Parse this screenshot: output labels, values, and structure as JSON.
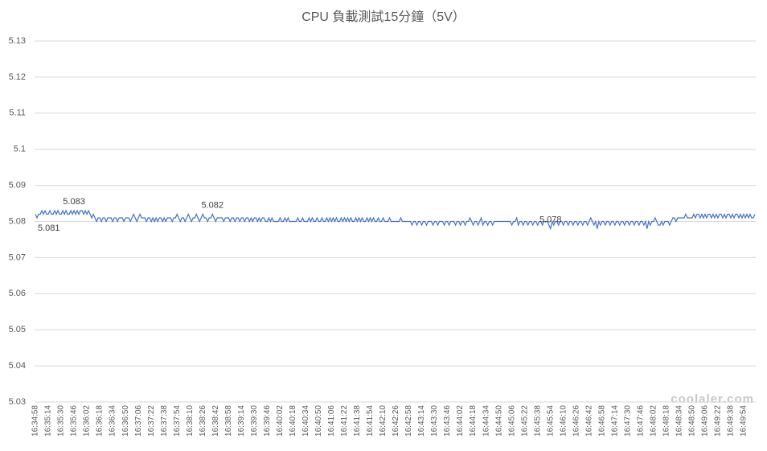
{
  "chart_data": {
    "type": "line",
    "title": "CPU 負載測試15分鐘（5V）",
    "watermark": "coolaler.com",
    "ylim": [
      5.03,
      5.13
    ],
    "yticks": [
      5.03,
      5.04,
      5.05,
      5.06,
      5.07,
      5.08,
      5.09,
      5.1,
      5.11,
      5.12,
      5.13
    ],
    "grid": true,
    "categories": [
      "16:34:58",
      null,
      null,
      null,
      null,
      null,
      null,
      null,
      "16:35:14",
      null,
      null,
      null,
      null,
      null,
      null,
      null,
      "16:35:30",
      null,
      null,
      null,
      null,
      null,
      null,
      null,
      "16:35:46",
      null,
      null,
      null,
      null,
      null,
      null,
      null,
      "16:36:02",
      null,
      null,
      null,
      null,
      null,
      null,
      null,
      "16:36:18",
      null,
      null,
      null,
      null,
      null,
      null,
      null,
      "16:36:34",
      null,
      null,
      null,
      null,
      null,
      null,
      null,
      "16:36:50",
      null,
      null,
      null,
      null,
      null,
      null,
      null,
      "16:37:06",
      null,
      null,
      null,
      null,
      null,
      null,
      null,
      "16:37:22",
      null,
      null,
      null,
      null,
      null,
      null,
      null,
      "16:37:38",
      null,
      null,
      null,
      null,
      null,
      null,
      null,
      "16:37:54",
      null,
      null,
      null,
      null,
      null,
      null,
      null,
      "16:38:10",
      null,
      null,
      null,
      null,
      null,
      null,
      null,
      "16:38:26",
      null,
      null,
      null,
      null,
      null,
      null,
      null,
      "16:38:42",
      null,
      null,
      null,
      null,
      null,
      null,
      null,
      "16:38:58",
      null,
      null,
      null,
      null,
      null,
      null,
      null,
      "16:39:14",
      null,
      null,
      null,
      null,
      null,
      null,
      null,
      "16:39:30",
      null,
      null,
      null,
      null,
      null,
      null,
      null,
      "16:39:46",
      null,
      null,
      null,
      null,
      null,
      null,
      null,
      "16:40:02",
      null,
      null,
      null,
      null,
      null,
      null,
      null,
      "16:40:18",
      null,
      null,
      null,
      null,
      null,
      null,
      null,
      "16:40:34",
      null,
      null,
      null,
      null,
      null,
      null,
      null,
      "16:40:50",
      null,
      null,
      null,
      null,
      null,
      null,
      null,
      "16:41:06",
      null,
      null,
      null,
      null,
      null,
      null,
      null,
      "16:41:22",
      null,
      null,
      null,
      null,
      null,
      null,
      null,
      "16:41:38",
      null,
      null,
      null,
      null,
      null,
      null,
      null,
      "16:41:54",
      null,
      null,
      null,
      null,
      null,
      null,
      null,
      "16:42:10",
      null,
      null,
      null,
      null,
      null,
      null,
      null,
      "16:42:26",
      null,
      null,
      null,
      null,
      null,
      null,
      null,
      "16:42:58",
      null,
      null,
      null,
      null,
      null,
      null,
      null,
      "16:43:14",
      null,
      null,
      null,
      null,
      null,
      null,
      null,
      "16:43:30",
      null,
      null,
      null,
      null,
      null,
      null,
      null,
      "16:43:46",
      null,
      null,
      null,
      null,
      null,
      null,
      null,
      "16:44:02",
      null,
      null,
      null,
      null,
      null,
      null,
      null,
      "16:44:18",
      null,
      null,
      null,
      null,
      null,
      null,
      null,
      "16:44:34",
      null,
      null,
      null,
      null,
      null,
      null,
      null,
      "16:44:50",
      null,
      null,
      null,
      null,
      null,
      null,
      null,
      "16:45:06",
      null,
      null,
      null,
      null,
      null,
      null,
      null,
      "16:45:22",
      null,
      null,
      null,
      null,
      null,
      null,
      null,
      "16:45:38",
      null,
      null,
      null,
      null,
      null,
      null,
      null,
      "16:45:54",
      null,
      null,
      null,
      null,
      null,
      null,
      null,
      "16:46:10",
      null,
      null,
      null,
      null,
      null,
      null,
      null,
      "16:46:26",
      null,
      null,
      null,
      null,
      null,
      null,
      null,
      "16:46:42",
      null,
      null,
      null,
      null,
      null,
      null,
      null,
      "16:46:58",
      null,
      null,
      null,
      null,
      null,
      null,
      null,
      "16:47:14",
      null,
      null,
      null,
      null,
      null,
      null,
      null,
      "16:47:30",
      null,
      null,
      null,
      null,
      null,
      null,
      null,
      "16:47:46",
      null,
      null,
      null,
      null,
      null,
      null,
      null,
      "16:48:02",
      null,
      null,
      null,
      null,
      null,
      null,
      null,
      "16:48:18",
      null,
      null,
      null,
      null,
      null,
      null,
      null,
      "16:48:34",
      null,
      null,
      null,
      null,
      null,
      null,
      null,
      "16:48:50",
      null,
      null,
      null,
      null,
      null,
      null,
      null,
      "16:49:06",
      null,
      null,
      null,
      null,
      null,
      null,
      null,
      "16:49:22",
      null,
      null,
      null,
      null,
      null,
      null,
      null,
      "16:49:38",
      null,
      null,
      null,
      null,
      null,
      null,
      null,
      "16:49:54",
      null,
      null,
      null,
      null,
      null,
      null,
      null
    ],
    "color": "#4472c4",
    "values": [
      5.082,
      5.081,
      5.082,
      5.082,
      5.083,
      5.082,
      5.083,
      5.082,
      5.082,
      5.083,
      5.082,
      5.082,
      5.083,
      5.082,
      5.083,
      5.082,
      5.082,
      5.083,
      5.082,
      5.083,
      5.082,
      5.082,
      5.083,
      5.082,
      5.083,
      5.082,
      5.083,
      5.082,
      5.083,
      5.083,
      5.082,
      5.083,
      5.082,
      5.083,
      5.082,
      5.081,
      5.082,
      5.081,
      5.08,
      5.081,
      5.081,
      5.08,
      5.081,
      5.081,
      5.08,
      5.081,
      5.081,
      5.081,
      5.08,
      5.081,
      5.081,
      5.08,
      5.081,
      5.081,
      5.081,
      5.08,
      5.081,
      5.081,
      5.081,
      5.08,
      5.081,
      5.082,
      5.081,
      5.08,
      5.081,
      5.082,
      5.081,
      5.081,
      5.081,
      5.08,
      5.081,
      5.081,
      5.08,
      5.081,
      5.08,
      5.081,
      5.08,
      5.081,
      5.081,
      5.08,
      5.081,
      5.08,
      5.081,
      5.081,
      5.081,
      5.08,
      5.081,
      5.081,
      5.082,
      5.081,
      5.08,
      5.081,
      5.081,
      5.08,
      5.081,
      5.082,
      5.081,
      5.08,
      5.081,
      5.081,
      5.082,
      5.081,
      5.08,
      5.081,
      5.082,
      5.081,
      5.081,
      5.08,
      5.081,
      5.081,
      5.082,
      5.081,
      5.08,
      5.081,
      5.081,
      5.081,
      5.081,
      5.08,
      5.081,
      5.081,
      5.081,
      5.08,
      5.081,
      5.081,
      5.08,
      5.081,
      5.081,
      5.08,
      5.081,
      5.081,
      5.08,
      5.081,
      5.081,
      5.08,
      5.081,
      5.08,
      5.081,
      5.081,
      5.08,
      5.081,
      5.08,
      5.081,
      5.081,
      5.08,
      5.08,
      5.081,
      5.08,
      5.081,
      5.08,
      5.08,
      5.08,
      5.08,
      5.081,
      5.08,
      5.08,
      5.081,
      5.08,
      5.081,
      5.08,
      5.08,
      5.08,
      5.08,
      5.08,
      5.081,
      5.08,
      5.08,
      5.081,
      5.08,
      5.08,
      5.08,
      5.081,
      5.08,
      5.081,
      5.08,
      5.08,
      5.081,
      5.08,
      5.08,
      5.081,
      5.08,
      5.08,
      5.081,
      5.08,
      5.081,
      5.08,
      5.081,
      5.08,
      5.081,
      5.08,
      5.08,
      5.081,
      5.08,
      5.081,
      5.08,
      5.081,
      5.08,
      5.081,
      5.08,
      5.08,
      5.081,
      5.08,
      5.081,
      5.08,
      5.081,
      5.08,
      5.08,
      5.081,
      5.08,
      5.081,
      5.08,
      5.081,
      5.08,
      5.08,
      5.081,
      5.08,
      5.08,
      5.081,
      5.08,
      5.08,
      5.08,
      5.081,
      5.08,
      5.08,
      5.08,
      5.08,
      5.08,
      5.08,
      5.081,
      5.08,
      5.08,
      5.08,
      5.08,
      5.08,
      5.08,
      5.079,
      5.08,
      5.08,
      5.079,
      5.08,
      5.08,
      5.079,
      5.08,
      5.08,
      5.079,
      5.08,
      5.08,
      5.08,
      5.079,
      5.08,
      5.08,
      5.079,
      5.08,
      5.08,
      5.08,
      5.079,
      5.08,
      5.08,
      5.079,
      5.08,
      5.08,
      5.08,
      5.079,
      5.08,
      5.08,
      5.079,
      5.08,
      5.08,
      5.079,
      5.08,
      5.08,
      5.081,
      5.08,
      5.079,
      5.08,
      5.08,
      5.079,
      5.08,
      5.081,
      5.079,
      5.08,
      5.08,
      5.079,
      5.08,
      5.08,
      5.079,
      5.08,
      5.08,
      5.08,
      5.08,
      5.08,
      5.08,
      5.08,
      5.08,
      5.08,
      5.08,
      5.08,
      5.079,
      5.08,
      5.08,
      5.081,
      5.079,
      5.08,
      5.08,
      5.079,
      5.08,
      5.08,
      5.079,
      5.08,
      5.08,
      5.079,
      5.08,
      5.08,
      5.079,
      5.08,
      5.08,
      5.079,
      5.08,
      5.08,
      5.08,
      5.079,
      5.078,
      5.08,
      5.079,
      5.08,
      5.08,
      5.079,
      5.08,
      5.08,
      5.079,
      5.08,
      5.08,
      5.079,
      5.08,
      5.08,
      5.079,
      5.08,
      5.08,
      5.079,
      5.08,
      5.08,
      5.079,
      5.08,
      5.08,
      5.079,
      5.08,
      5.081,
      5.08,
      5.079,
      5.08,
      5.078,
      5.08,
      5.079,
      5.08,
      5.08,
      5.079,
      5.08,
      5.08,
      5.079,
      5.08,
      5.08,
      5.079,
      5.08,
      5.08,
      5.079,
      5.08,
      5.08,
      5.079,
      5.08,
      5.08,
      5.079,
      5.08,
      5.08,
      5.079,
      5.08,
      5.08,
      5.079,
      5.08,
      5.08,
      5.079,
      5.08,
      5.078,
      5.08,
      5.079,
      5.08,
      5.08,
      5.081,
      5.08,
      5.079,
      5.079,
      5.08,
      5.079,
      5.08,
      5.08,
      5.08,
      5.079,
      5.08,
      5.081,
      5.081,
      5.08,
      5.081,
      5.081,
      5.081,
      5.081,
      5.081,
      5.082,
      5.081,
      5.081,
      5.081,
      5.081,
      5.082,
      5.081,
      5.082,
      5.082,
      5.081,
      5.082,
      5.081,
      5.082,
      5.081,
      5.082,
      5.082,
      5.081,
      5.082,
      5.081,
      5.082,
      5.081,
      5.082,
      5.082,
      5.081,
      5.082,
      5.081,
      5.082,
      5.082,
      5.081,
      5.082,
      5.081,
      5.082,
      5.082,
      5.081,
      5.082,
      5.081,
      5.082,
      5.081,
      5.082,
      5.081,
      5.082,
      5.081,
      5.081,
      5.082
    ],
    "value_labels": [
      null,
      "5.081",
      null,
      null,
      null,
      null,
      null,
      null,
      null,
      null,
      null,
      null,
      null,
      null,
      null,
      null,
      null,
      null,
      null,
      null,
      null,
      null,
      null,
      null,
      "5.083",
      null,
      null,
      null,
      null,
      null,
      null,
      null,
      null,
      null,
      null,
      null,
      null,
      null,
      null,
      null,
      null,
      null,
      null,
      null,
      null,
      null,
      null,
      null,
      null,
      null,
      null,
      null,
      null,
      null,
      null,
      null,
      null,
      null,
      null,
      null,
      null,
      null,
      null,
      null,
      null,
      null,
      null,
      null,
      null,
      null,
      null,
      null,
      null,
      null,
      null,
      null,
      null,
      null,
      null,
      null,
      null,
      null,
      null,
      null,
      null,
      null,
      null,
      null,
      null,
      null,
      null,
      null,
      null,
      null,
      null,
      null,
      null,
      null,
      null,
      null,
      null,
      null,
      null,
      null,
      null,
      null,
      null,
      null,
      null,
      null,
      "5.082",
      null,
      null,
      null,
      null,
      null,
      null,
      null,
      null,
      null,
      null,
      null,
      null,
      null,
      null,
      null,
      null,
      null,
      null,
      null,
      null,
      null,
      null,
      null,
      null,
      null,
      null,
      null,
      null,
      null,
      null,
      null,
      null,
      null,
      null,
      null,
      null,
      null,
      null,
      null,
      null,
      null,
      null,
      null,
      null,
      null,
      null,
      null,
      null,
      null,
      null,
      null,
      null,
      null,
      null,
      null,
      null,
      null,
      null,
      null,
      null,
      null,
      null,
      null,
      null,
      null,
      null,
      null,
      null,
      null,
      null,
      null,
      null,
      null,
      null,
      null,
      null,
      null,
      null,
      null,
      null,
      null,
      null,
      null,
      null,
      null,
      null,
      null,
      null,
      null,
      null,
      null,
      null,
      null,
      null,
      null,
      null,
      null,
      null,
      null,
      null,
      null,
      null,
      null,
      null,
      null,
      null,
      null,
      null,
      null,
      null,
      null,
      null,
      null,
      null,
      null,
      null,
      null,
      null,
      null,
      null,
      null,
      null,
      null,
      null,
      null,
      null,
      null,
      null,
      null,
      null,
      null,
      null,
      null,
      null,
      null,
      null,
      null,
      null,
      null,
      null,
      null,
      null,
      null,
      null,
      null,
      null,
      null,
      null,
      null,
      null,
      null,
      null,
      null,
      null,
      null,
      null,
      null,
      null,
      null,
      null,
      null,
      null,
      null,
      null,
      null,
      null,
      null,
      null,
      null,
      null,
      null,
      null,
      null,
      null,
      null,
      null,
      null,
      null,
      null,
      null,
      null,
      null,
      null,
      null,
      null,
      null,
      null,
      null,
      null,
      null,
      null,
      null,
      null,
      null,
      null,
      null,
      null,
      null,
      null,
      null,
      null,
      null,
      null,
      null,
      null,
      null,
      null,
      null,
      null,
      "5.078",
      null,
      null,
      null,
      null,
      null,
      null,
      null,
      null,
      null,
      null,
      null,
      null,
      null,
      null,
      null,
      null,
      null,
      null,
      null,
      null,
      null,
      null,
      null,
      null,
      null,
      null,
      null,
      null,
      null,
      null,
      null,
      null,
      null,
      null,
      null,
      null,
      null,
      null,
      null,
      null,
      null,
      null,
      null,
      null,
      null,
      null,
      null,
      null,
      null,
      null,
      null,
      null,
      null,
      null,
      null,
      null,
      null,
      null,
      null,
      null,
      null,
      null,
      null,
      null,
      null,
      null,
      null,
      null,
      null,
      null,
      null,
      null,
      null,
      null,
      null,
      null,
      null,
      null,
      null,
      null,
      null,
      null,
      null,
      null,
      null,
      null,
      null,
      null,
      null,
      null,
      null,
      null,
      null,
      null,
      null,
      null,
      null,
      null,
      null,
      null,
      null,
      null,
      null,
      null,
      null,
      null,
      null,
      null,
      null,
      null,
      null,
      null,
      null,
      null,
      null,
      null,
      null,
      null,
      null,
      null,
      null,
      null,
      null,
      null,
      null,
      null,
      null
    ]
  }
}
